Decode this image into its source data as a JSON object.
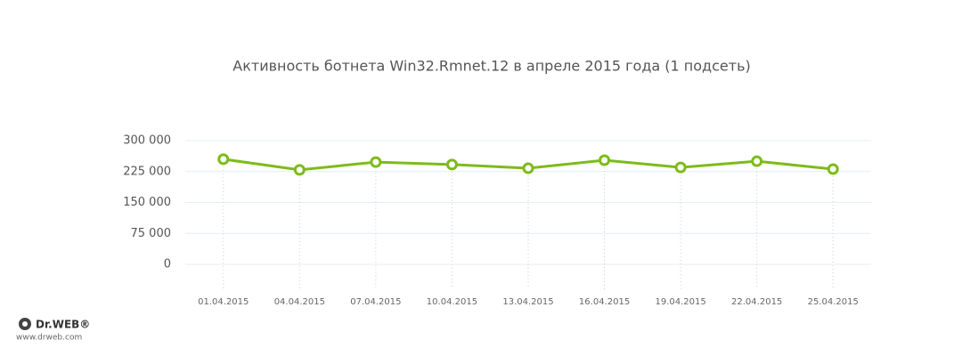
{
  "chart_data": {
    "type": "line",
    "title": "Активность ботнета Win32.Rmnet.12 в апреле 2015 года (1 подсеть)",
    "categories": [
      "01.04.2015",
      "04.04.2015",
      "07.04.2015",
      "10.04.2015",
      "13.04.2015",
      "16.04.2015",
      "19.04.2015",
      "22.04.2015",
      "25.04.2015"
    ],
    "values": [
      255000,
      229000,
      248000,
      242000,
      233000,
      252500,
      235000,
      250000,
      231000
    ],
    "color": "#7dbb1a",
    "ylim": [
      0,
      300000
    ],
    "yticks": [
      0,
      {
        "value": 75000,
        "label": "75 000"
      },
      {
        "value": 150000,
        "label": "150 000"
      },
      {
        "value": 225000,
        "label": "225 000"
      },
      {
        "value": 300000,
        "label": "300 000"
      }
    ],
    "grid": true
  },
  "logo": {
    "brand": "Dr.WEB®",
    "url": "www.drweb.com"
  }
}
